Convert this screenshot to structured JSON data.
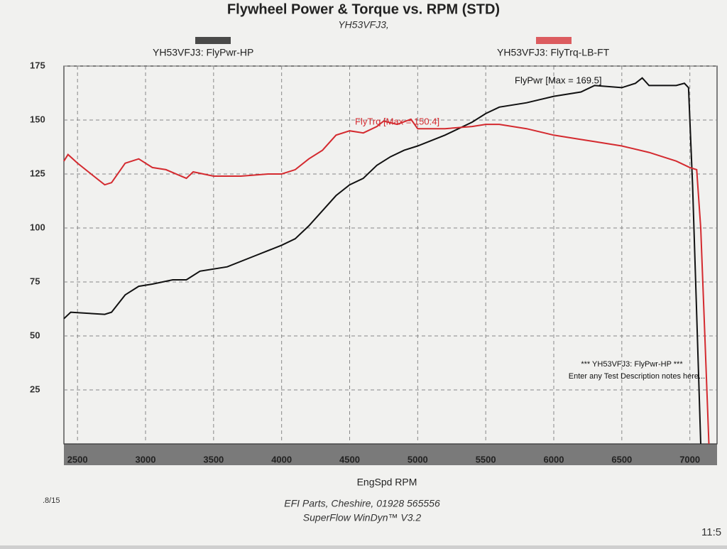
{
  "chart_data": {
    "type": "line",
    "title": "Flywheel Power & Torque vs. RPM (STD)",
    "subtitle": "YH53VFJ3,",
    "x_label": "EngSpd RPM",
    "xlim": [
      2400,
      7200
    ],
    "xticks": [
      2500,
      3000,
      3500,
      4000,
      4500,
      5000,
      5500,
      6000,
      6500,
      7000
    ],
    "ylim": [
      0,
      175
    ],
    "yticks": [
      25,
      50,
      75,
      100,
      125,
      150,
      175
    ],
    "grid": true,
    "series": [
      {
        "name": "YH53VFJ3: FlyPwr-HP",
        "color": "#111111",
        "x": [
          2400,
          2450,
          2700,
          2750,
          2850,
          2950,
          3050,
          3200,
          3300,
          3400,
          3600,
          3800,
          4000,
          4100,
          4200,
          4300,
          4400,
          4500,
          4600,
          4700,
          4800,
          4900,
          5000,
          5200,
          5400,
          5500,
          5600,
          5800,
          6000,
          6200,
          6300,
          6500,
          6600,
          6650,
          6700,
          6900,
          6960,
          6990,
          7020,
          7050,
          7080
        ],
        "values": [
          58,
          61,
          60,
          61,
          69,
          73,
          74,
          76,
          76,
          80,
          82,
          87,
          92,
          95,
          101,
          108,
          115,
          120,
          123,
          129,
          133,
          136,
          138,
          143,
          149,
          153,
          156,
          158,
          161,
          163,
          166,
          165,
          167,
          169.5,
          166,
          166,
          167,
          165,
          120,
          60,
          0
        ]
      },
      {
        "name": "YH53VFJ3: FlyTrq-LB-FT",
        "color": "#d42a2f",
        "x": [
          2400,
          2430,
          2500,
          2600,
          2700,
          2750,
          2850,
          2950,
          3050,
          3150,
          3300,
          3350,
          3500,
          3700,
          3900,
          4000,
          4100,
          4200,
          4300,
          4400,
          4500,
          4600,
          4700,
          4750,
          4850,
          4950,
          5000,
          5200,
          5400,
          5500,
          5600,
          5800,
          6000,
          6200,
          6300,
          6500,
          6700,
          6800,
          6900,
          7000,
          7050,
          7080,
          7110,
          7140
        ],
        "values": [
          131,
          134,
          130,
          125,
          120,
          121,
          130,
          132,
          128,
          127,
          123,
          126,
          124,
          124,
          125,
          125,
          127,
          132,
          136,
          143,
          145,
          144,
          147,
          149.5,
          148,
          150.4,
          146,
          146,
          147,
          148,
          148,
          146,
          143,
          141,
          140,
          138,
          135,
          133,
          131,
          128,
          127,
          100,
          50,
          0
        ]
      }
    ],
    "annotations": [
      "FlyPwr [Max = 169.5]",
      "FlyTrq [Max = 150.4]",
      "*** YH53VFJ3: FlyPwr-HP ***",
      "Enter any Test Description notes here..."
    ],
    "footer": [
      "EFI Parts, Cheshire, 01928 565556",
      "SuperFlow WinDyn™ V3.2"
    ],
    "date_fragment": ".8/15",
    "time_fragment": "11:5"
  }
}
